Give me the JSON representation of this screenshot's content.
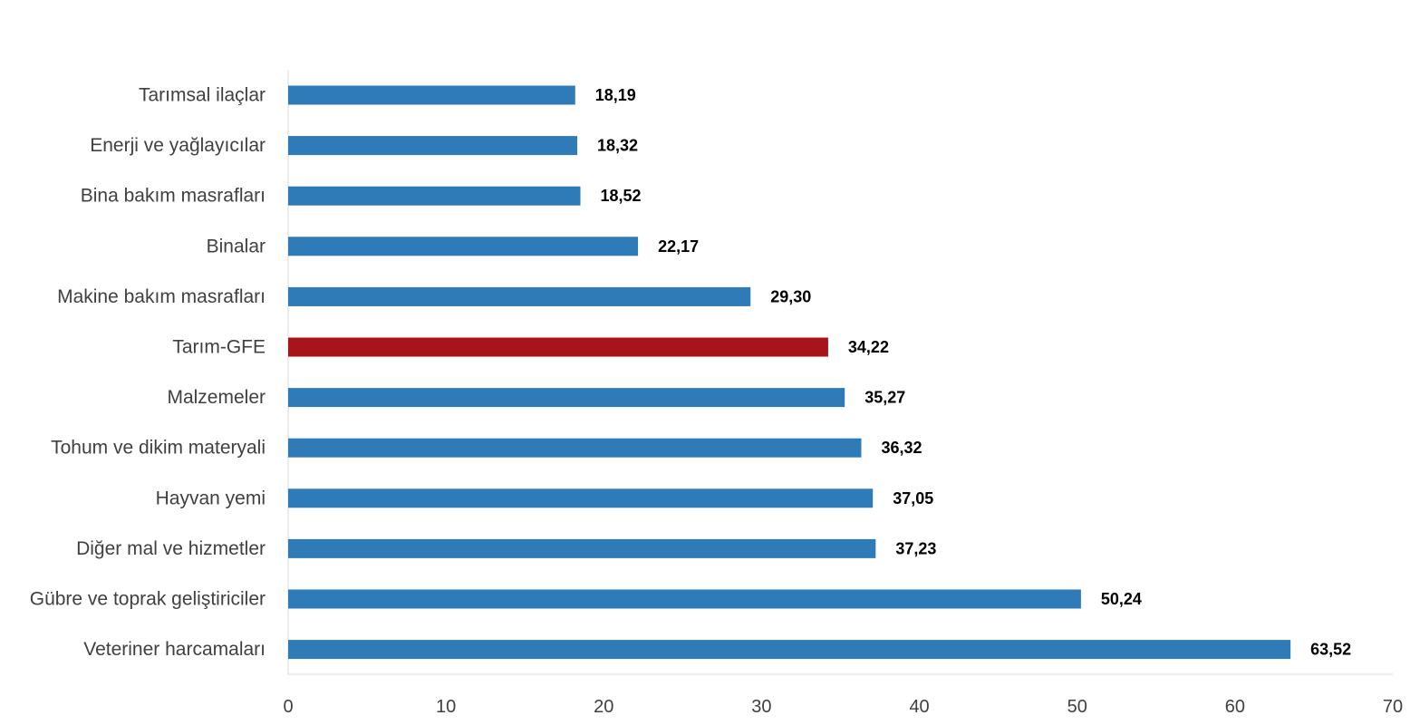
{
  "chart_data": {
    "type": "bar",
    "orientation": "horizontal",
    "title": "",
    "xlabel": "",
    "ylabel": "",
    "xlim": [
      0,
      70
    ],
    "xticks": [
      0,
      10,
      20,
      30,
      40,
      50,
      60,
      70
    ],
    "xtick_labels": [
      "0",
      "10",
      "20",
      "30",
      "40",
      "50",
      "60",
      "70"
    ],
    "grid": false,
    "categories": [
      "Tarımsal ilaçlar",
      "Enerji  ve yağlayıcılar",
      "Bina bakım masrafları",
      "Binalar",
      "Makine bakım masrafları",
      "Tarım-GFE",
      "Malzemeler",
      "Tohum ve dikim materyali",
      "Hayvan yemi",
      "Diğer mal ve hizmetler",
      "Gübre ve toprak geliştiriciler",
      "Veteriner harcamaları"
    ],
    "values": [
      18.19,
      18.32,
      18.52,
      22.17,
      29.3,
      34.22,
      35.27,
      36.32,
      37.05,
      37.23,
      50.24,
      63.52
    ],
    "value_labels": [
      "18,19",
      "18,32",
      "18,52",
      "22,17",
      "29,30",
      "34,22",
      "35,27",
      "36,32",
      "37,05",
      "37,23",
      "50,24",
      "63,52"
    ],
    "highlight_category": "Tarım-GFE",
    "colors": {
      "bar": "#2E7BB8",
      "highlight": "#A8141B",
      "axis": "#D9D9D9"
    }
  }
}
